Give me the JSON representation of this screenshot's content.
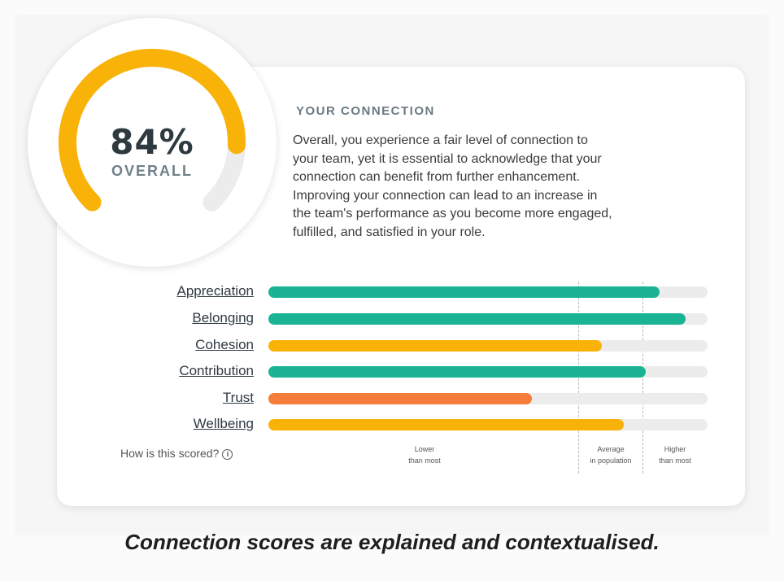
{
  "score": {
    "value": "84%",
    "label": "OVERALL",
    "fraction": 0.84
  },
  "connection": {
    "heading": "YOUR CONNECTION",
    "description_lines": [
      "Overall, you experience a fair level of connection to",
      "your team, yet it is essential to acknowledge that your",
      "connection can benefit from further enhancement.",
      "Improving your connection can lead to an increase in",
      "the team's performance as you become more engaged,",
      "fulfilled, and satisfied in your role."
    ]
  },
  "metrics": [
    {
      "label": "Appreciation",
      "value": 0.89,
      "color": "#1ab394"
    },
    {
      "label": "Belonging",
      "value": 0.95,
      "color": "#1ab394"
    },
    {
      "label": "Cohesion",
      "value": 0.76,
      "color": "#f9b208"
    },
    {
      "label": "Contribution",
      "value": 0.86,
      "color": "#1ab394"
    },
    {
      "label": "Trust",
      "value": 0.6,
      "color": "#f57c3a"
    },
    {
      "label": "Wellbeing",
      "value": 0.81,
      "color": "#f9b208"
    }
  ],
  "scale": {
    "how_scored": "How is this scored?",
    "info_icon": "ⓘ",
    "zones": [
      "Lower\nthan most",
      "Average\nin population",
      "Higher\nthan most"
    ]
  },
  "colors": {
    "ring": "#f9b208",
    "ring_track": "#ececec",
    "track": "#ececec"
  },
  "caption": "Connection scores are explained and contextualised."
}
